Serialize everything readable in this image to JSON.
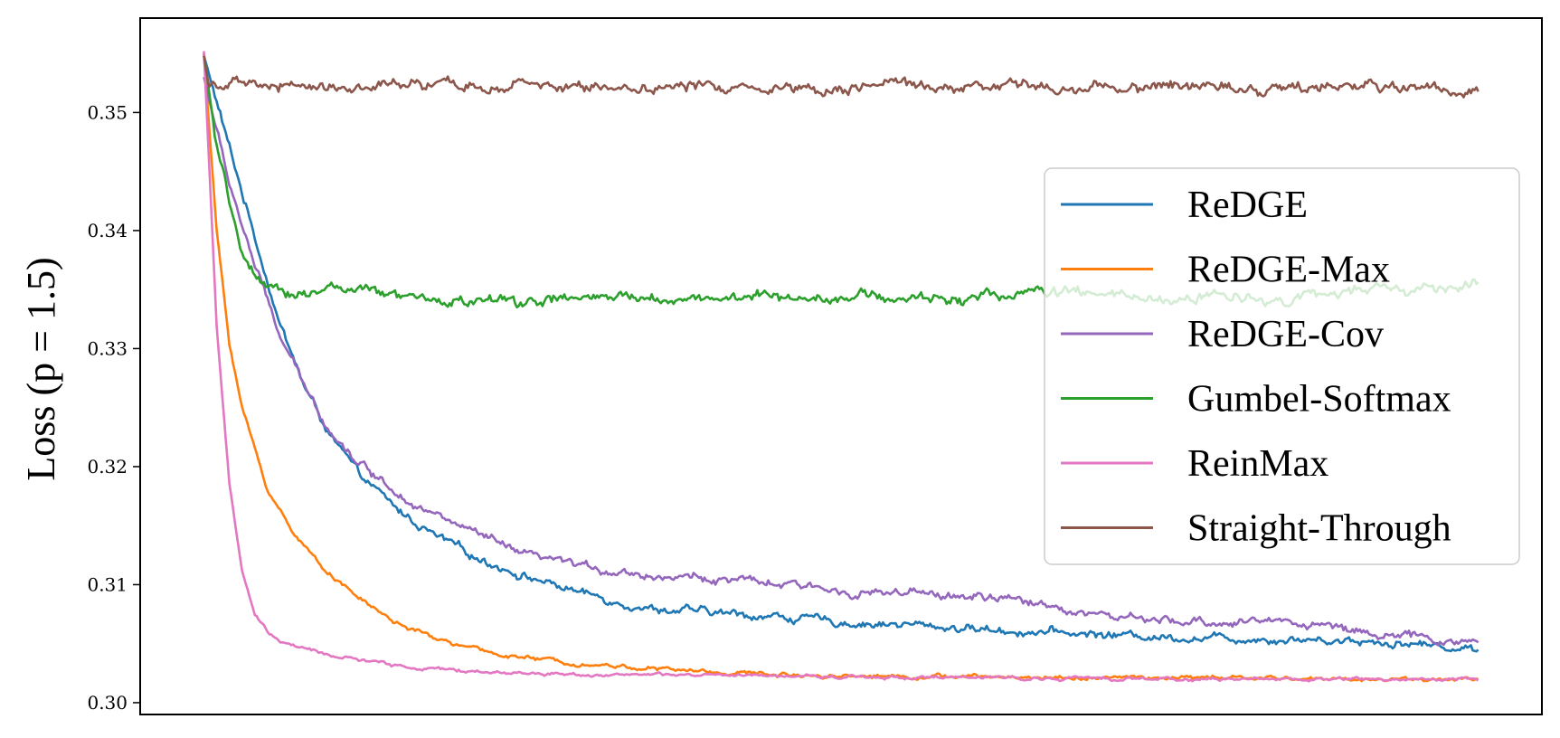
{
  "chart_data": {
    "type": "line",
    "title": "",
    "xlabel": "",
    "ylabel": "Loss (p = 1.5)",
    "ylim": [
      0.299,
      0.358
    ],
    "xlim": [
      -0.05,
      1.05
    ],
    "yticks": [
      0.3,
      0.31,
      0.32,
      0.33,
      0.34,
      0.35
    ],
    "ytick_labels": [
      "0.30",
      "0.31",
      "0.32",
      "0.33",
      "0.34",
      "0.35"
    ],
    "grid": false,
    "legend_position": "center-right",
    "x_ticks_shown": false,
    "series": [
      {
        "name": "ReDGE",
        "color": "#1f77b4",
        "x": [
          0,
          0.02,
          0.04,
          0.06,
          0.08,
          0.1,
          0.12,
          0.15,
          0.18,
          0.21,
          0.25,
          0.3,
          0.35,
          0.4,
          0.45,
          0.5,
          0.55,
          0.6,
          0.65,
          0.7,
          0.75,
          0.8,
          0.85,
          0.9,
          0.95,
          1.0
        ],
        "values": [
          0.3548,
          0.347,
          0.3395,
          0.332,
          0.3265,
          0.3225,
          0.3195,
          0.3165,
          0.3142,
          0.3125,
          0.3108,
          0.3092,
          0.308,
          0.3076,
          0.3073,
          0.3068,
          0.3066,
          0.3063,
          0.306,
          0.3058,
          0.3056,
          0.3055,
          0.3054,
          0.3053,
          0.305,
          0.3045
        ],
        "noise": 0.0003
      },
      {
        "name": "ReDGE-Max",
        "color": "#ff7f0e",
        "x": [
          0,
          0.01,
          0.02,
          0.03,
          0.05,
          0.07,
          0.09,
          0.12,
          0.15,
          0.18,
          0.22,
          0.26,
          0.3,
          0.35,
          0.4,
          0.45,
          0.5,
          0.6,
          0.7,
          0.8,
          0.9,
          1.0
        ],
        "values": [
          0.355,
          0.34,
          0.3305,
          0.325,
          0.318,
          0.3145,
          0.3118,
          0.309,
          0.3068,
          0.3055,
          0.3043,
          0.3037,
          0.3033,
          0.3029,
          0.3026,
          0.3024,
          0.3023,
          0.3022,
          0.3021,
          0.3021,
          0.302,
          0.302
        ],
        "noise": 0.00015
      },
      {
        "name": "ReDGE-Cov",
        "color": "#9467bd",
        "x": [
          0,
          0.02,
          0.04,
          0.06,
          0.08,
          0.1,
          0.12,
          0.15,
          0.18,
          0.21,
          0.25,
          0.3,
          0.35,
          0.4,
          0.45,
          0.5,
          0.55,
          0.6,
          0.65,
          0.7,
          0.75,
          0.8,
          0.85,
          0.9,
          0.95,
          1.0
        ],
        "values": [
          0.353,
          0.344,
          0.337,
          0.331,
          0.3265,
          0.323,
          0.3205,
          0.318,
          0.316,
          0.3145,
          0.3125,
          0.3115,
          0.3108,
          0.3105,
          0.31,
          0.3095,
          0.3092,
          0.309,
          0.3085,
          0.3075,
          0.3068,
          0.3068,
          0.307,
          0.3062,
          0.3055,
          0.305
        ],
        "noise": 0.0003
      },
      {
        "name": "Gumbel-Softmax",
        "color": "#2ca02c",
        "x": [
          0,
          0.01,
          0.02,
          0.03,
          0.04,
          0.05,
          0.06,
          0.08,
          0.1,
          0.12,
          0.14,
          0.18,
          0.25,
          0.3,
          0.4,
          0.5,
          0.55,
          0.6,
          0.65,
          0.7,
          0.75,
          0.8,
          0.85,
          0.9,
          0.95,
          1.0
        ],
        "values": [
          0.355,
          0.347,
          0.342,
          0.3385,
          0.336,
          0.3348,
          0.3345,
          0.3348,
          0.3352,
          0.335,
          0.3345,
          0.334,
          0.334,
          0.3342,
          0.3343,
          0.3345,
          0.3342,
          0.3343,
          0.3348,
          0.3346,
          0.334,
          0.3345,
          0.3342,
          0.3348,
          0.335,
          0.3352
        ],
        "noise": 0.0004
      },
      {
        "name": "ReinMax",
        "color": "#e377c2",
        "x": [
          0,
          0.01,
          0.02,
          0.03,
          0.04,
          0.05,
          0.06,
          0.08,
          0.1,
          0.13,
          0.16,
          0.2,
          0.25,
          0.3,
          0.4,
          0.5,
          0.6,
          0.8,
          1.0
        ],
        "values": [
          0.3552,
          0.332,
          0.3185,
          0.311,
          0.3075,
          0.306,
          0.3052,
          0.3045,
          0.304,
          0.3035,
          0.303,
          0.3027,
          0.3025,
          0.3024,
          0.3023,
          0.3022,
          0.3021,
          0.302,
          0.302
        ],
        "noise": 0.00012
      },
      {
        "name": "Straight-Through",
        "color": "#8c564b",
        "x": [
          0,
          0.004,
          0.008,
          0.012,
          0.02,
          0.03,
          0.1,
          0.3,
          0.5,
          0.7,
          0.9,
          1.0
        ],
        "values": [
          0.3548,
          0.352,
          0.353,
          0.3522,
          0.3525,
          0.3522,
          0.3522,
          0.3522,
          0.3522,
          0.3522,
          0.3522,
          0.352
        ],
        "noise": 0.0004
      }
    ]
  }
}
